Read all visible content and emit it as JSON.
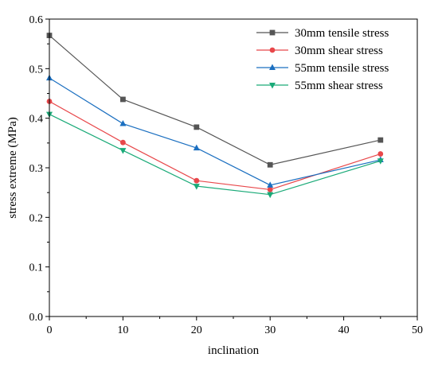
{
  "chart_data": {
    "type": "line",
    "title": "",
    "xlabel": "inclination",
    "ylabel": "stress extreme (MPa)",
    "xlim": [
      0,
      50
    ],
    "ylim": [
      0.0,
      0.6
    ],
    "xticks": [
      "0",
      "10",
      "20",
      "30",
      "40",
      "50"
    ],
    "yticks": [
      "0.0",
      "0.1",
      "0.2",
      "0.3",
      "0.4",
      "0.5",
      "0.6"
    ],
    "grid": false,
    "legend_position": "top-right",
    "x": [
      0,
      10,
      20,
      30,
      45
    ],
    "series": [
      {
        "name": "30mm tensile stress",
        "color": "#555555",
        "marker": "square",
        "values": [
          0.567,
          0.438,
          0.382,
          0.306,
          0.356
        ]
      },
      {
        "name": "30mm shear stress",
        "color": "#e8474a",
        "marker": "circle",
        "values": [
          0.434,
          0.351,
          0.274,
          0.256,
          0.328
        ]
      },
      {
        "name": "55mm tensile stress",
        "color": "#1b6fc0",
        "marker": "triangle-up",
        "values": [
          0.481,
          0.389,
          0.34,
          0.265,
          0.316
        ]
      },
      {
        "name": "55mm shear stress",
        "color": "#1aaa78",
        "marker": "triangle-down",
        "values": [
          0.408,
          0.335,
          0.263,
          0.246,
          0.314
        ]
      }
    ]
  }
}
